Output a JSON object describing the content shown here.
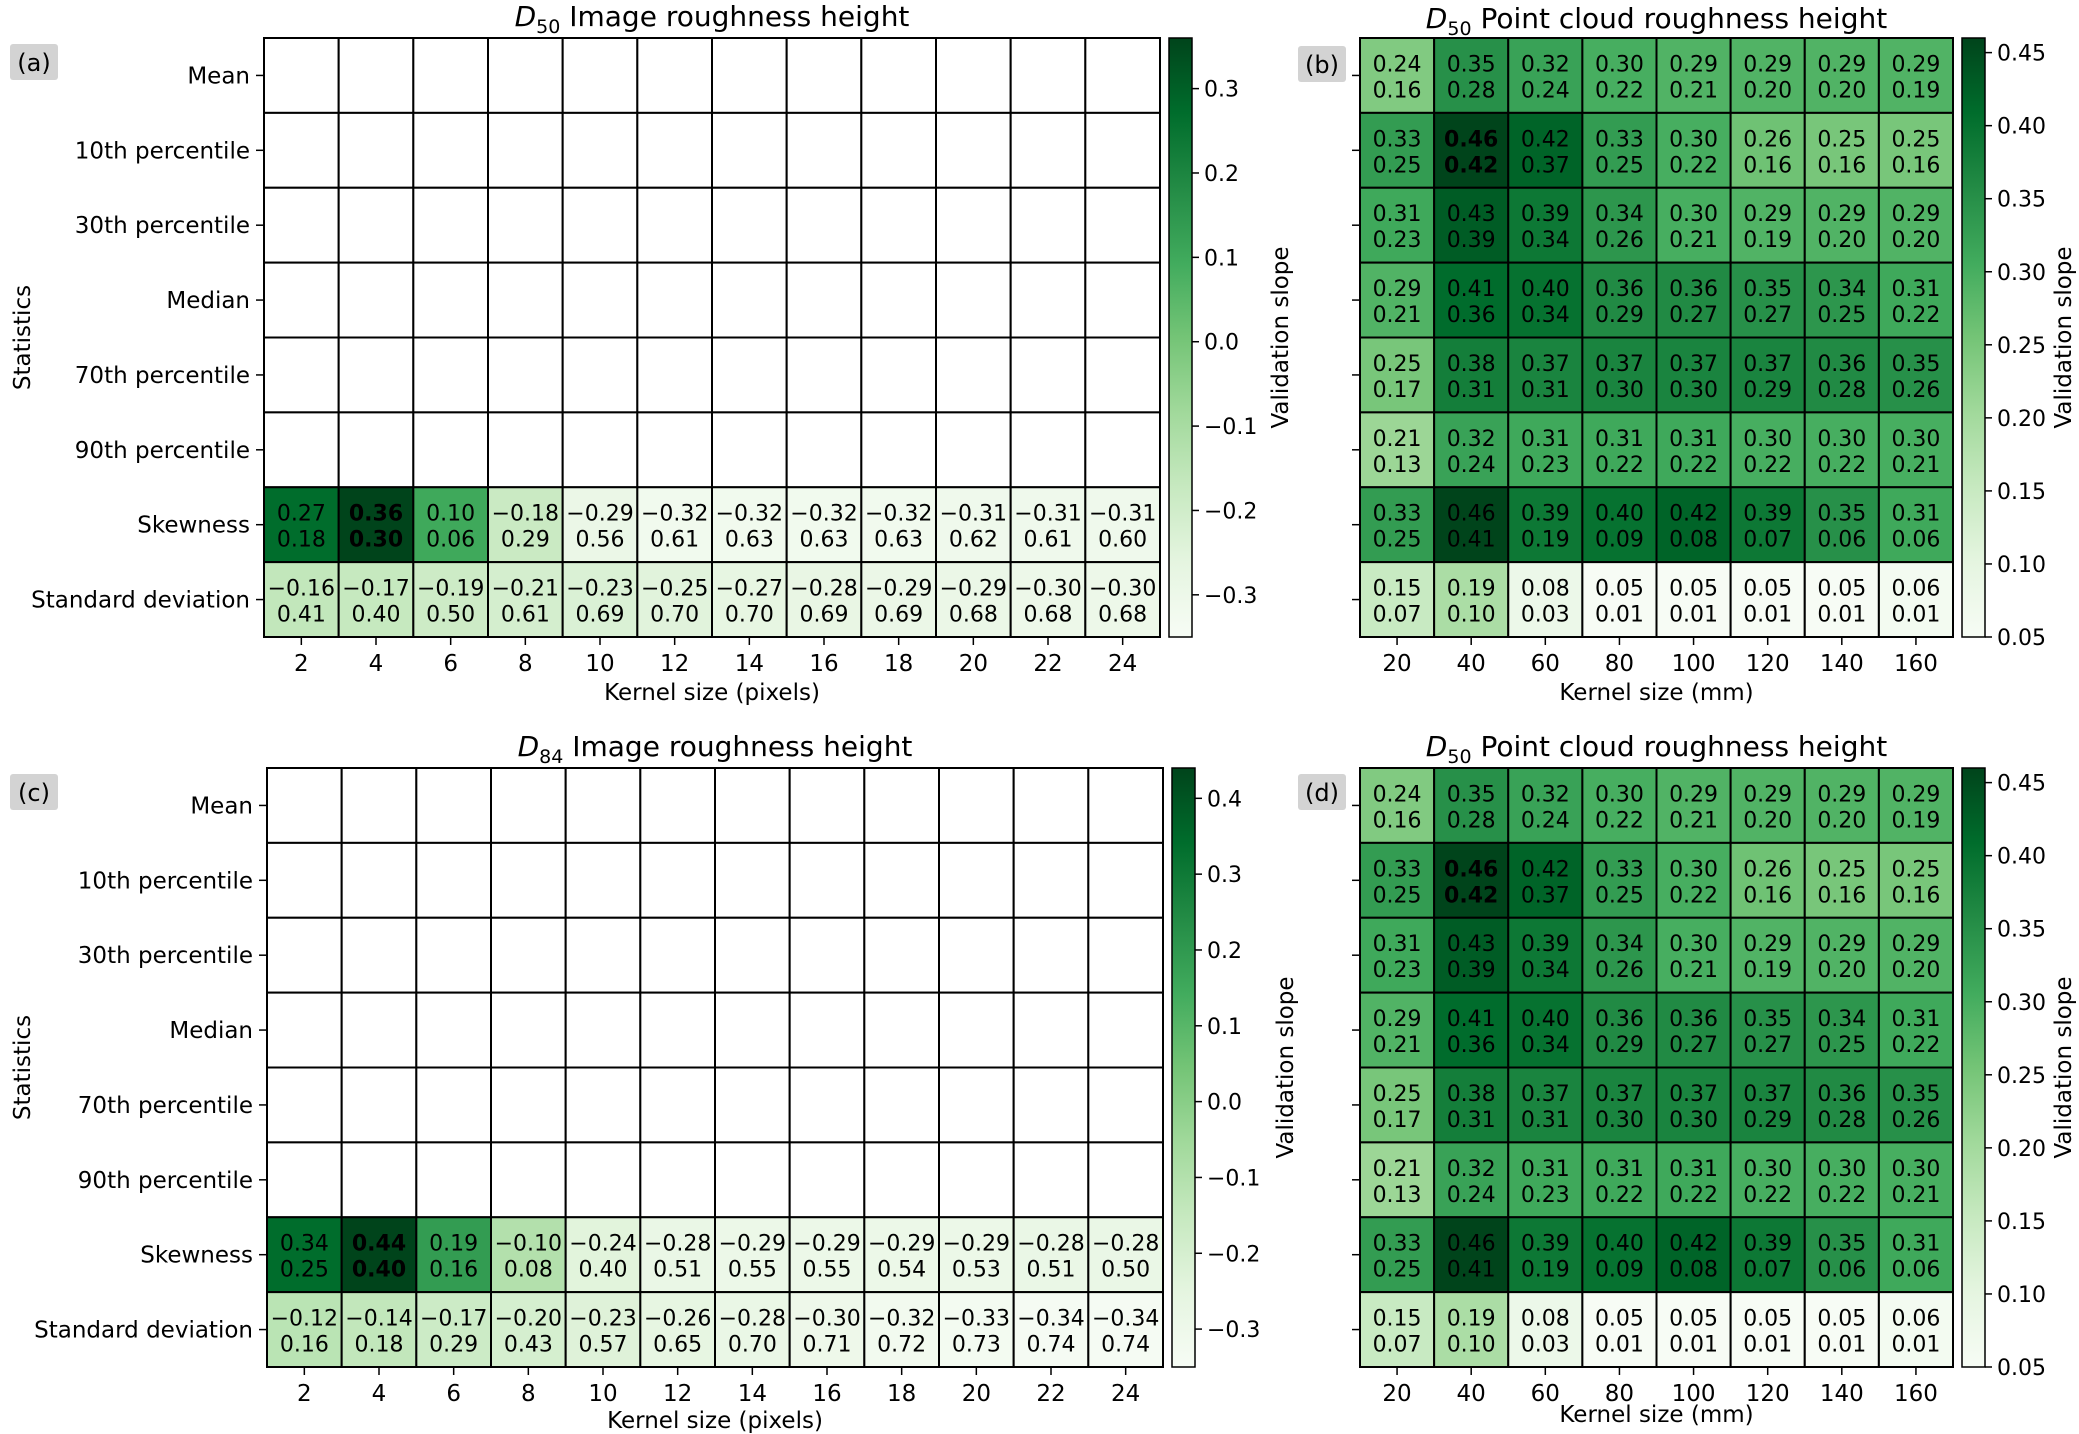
{
  "colormap": [
    "#f7fcf5",
    "#e5f5e0",
    "#c7e9c0",
    "#a1d99b",
    "#74c476",
    "#41ab5d",
    "#238b45",
    "#006d2c",
    "#00441b"
  ],
  "chart_data": [
    {
      "type": "heatmap",
      "panel_label": "(a)",
      "title_symbol": "D",
      "title_subscript": "50",
      "title": "Image roughness height",
      "xlabel": "Kernel size (pixels)",
      "ylabel": "Statistics",
      "colorbar_label": "Validation slope",
      "colorbar_range": [
        -0.35,
        0.36
      ],
      "colorbar_ticks": [
        "0.3",
        "0.2",
        "0.1",
        "0.0",
        "−0.1",
        "−0.2",
        "−0.3"
      ],
      "colorbar_tick_values": [
        0.3,
        0.2,
        0.1,
        0.0,
        -0.1,
        -0.2,
        -0.3
      ],
      "x_categories": [
        "2",
        "4",
        "6",
        "8",
        "10",
        "12",
        "14",
        "16",
        "18",
        "20",
        "22",
        "24"
      ],
      "y_categories": [
        "Mean",
        "10th percentile",
        "30th percentile",
        "Median",
        "70th percentile",
        "90th percentile",
        "Skewness",
        "Standard deviation"
      ],
      "slope": [
        [
          null,
          null,
          null,
          null,
          null,
          null,
          null,
          null,
          null,
          null,
          null,
          null
        ],
        [
          null,
          null,
          null,
          null,
          null,
          null,
          null,
          null,
          null,
          null,
          null,
          null
        ],
        [
          null,
          null,
          null,
          null,
          null,
          null,
          null,
          null,
          null,
          null,
          null,
          null
        ],
        [
          null,
          null,
          null,
          null,
          null,
          null,
          null,
          null,
          null,
          null,
          null,
          null
        ],
        [
          null,
          null,
          null,
          null,
          null,
          null,
          null,
          null,
          null,
          null,
          null,
          null
        ],
        [
          null,
          null,
          null,
          null,
          null,
          null,
          null,
          null,
          null,
          null,
          null,
          null
        ],
        [
          "0.27",
          "0.36",
          "0.10",
          "-0.18",
          "-0.29",
          "-0.32",
          "-0.32",
          "-0.32",
          "-0.32",
          "-0.31",
          "-0.31",
          "-0.31"
        ],
        [
          "-0.16",
          "-0.17",
          "-0.19",
          "-0.21",
          "-0.23",
          "-0.25",
          "-0.27",
          "-0.28",
          "-0.29",
          "-0.29",
          "-0.30",
          "-0.30"
        ]
      ],
      "second_value": [
        [
          null,
          null,
          null,
          null,
          null,
          null,
          null,
          null,
          null,
          null,
          null,
          null
        ],
        [
          null,
          null,
          null,
          null,
          null,
          null,
          null,
          null,
          null,
          null,
          null,
          null
        ],
        [
          null,
          null,
          null,
          null,
          null,
          null,
          null,
          null,
          null,
          null,
          null,
          null
        ],
        [
          null,
          null,
          null,
          null,
          null,
          null,
          null,
          null,
          null,
          null,
          null,
          null
        ],
        [
          null,
          null,
          null,
          null,
          null,
          null,
          null,
          null,
          null,
          null,
          null,
          null
        ],
        [
          null,
          null,
          null,
          null,
          null,
          null,
          null,
          null,
          null,
          null,
          null,
          null
        ],
        [
          "0.18",
          "0.30",
          "0.06",
          "0.29",
          "0.56",
          "0.61",
          "0.63",
          "0.63",
          "0.63",
          "0.62",
          "0.61",
          "0.60"
        ],
        [
          "0.41",
          "0.40",
          "0.50",
          "0.61",
          "0.69",
          "0.70",
          "0.70",
          "0.69",
          "0.69",
          "0.68",
          "0.68",
          "0.68"
        ]
      ],
      "bold_cells": [
        [
          6,
          1
        ]
      ]
    },
    {
      "type": "heatmap",
      "panel_label": "(b)",
      "title_symbol": "D",
      "title_subscript": "50",
      "title": "Point cloud roughness height",
      "xlabel": "Kernel size (mm)",
      "ylabel": "",
      "colorbar_label": "Validation slope",
      "colorbar_range": [
        0.05,
        0.46
      ],
      "colorbar_ticks": [
        "0.45",
        "0.40",
        "0.35",
        "0.30",
        "0.25",
        "0.20",
        "0.15",
        "0.10",
        "0.05"
      ],
      "colorbar_tick_values": [
        0.45,
        0.4,
        0.35,
        0.3,
        0.25,
        0.2,
        0.15,
        0.1,
        0.05
      ],
      "x_categories": [
        "20",
        "40",
        "60",
        "80",
        "100",
        "120",
        "140",
        "160"
      ],
      "y_categories": [
        "Mean",
        "10th percentile",
        "30th percentile",
        "Median",
        "70th percentile",
        "90th percentile",
        "Skewness",
        "Standard deviation"
      ],
      "slope": [
        [
          "0.24",
          "0.35",
          "0.32",
          "0.30",
          "0.29",
          "0.29",
          "0.29",
          "0.29"
        ],
        [
          "0.33",
          "0.46",
          "0.42",
          "0.33",
          "0.30",
          "0.26",
          "0.25",
          "0.25"
        ],
        [
          "0.31",
          "0.43",
          "0.39",
          "0.34",
          "0.30",
          "0.29",
          "0.29",
          "0.29"
        ],
        [
          "0.29",
          "0.41",
          "0.40",
          "0.36",
          "0.36",
          "0.35",
          "0.34",
          "0.31"
        ],
        [
          "0.25",
          "0.38",
          "0.37",
          "0.37",
          "0.37",
          "0.37",
          "0.36",
          "0.35"
        ],
        [
          "0.21",
          "0.32",
          "0.31",
          "0.31",
          "0.31",
          "0.30",
          "0.30",
          "0.30"
        ],
        [
          "0.33",
          "0.46",
          "0.39",
          "0.40",
          "0.42",
          "0.39",
          "0.35",
          "0.31"
        ],
        [
          "0.15",
          "0.19",
          "0.08",
          "0.05",
          "0.05",
          "0.05",
          "0.05",
          "0.06"
        ]
      ],
      "second_value": [
        [
          "0.16",
          "0.28",
          "0.24",
          "0.22",
          "0.21",
          "0.20",
          "0.20",
          "0.19"
        ],
        [
          "0.25",
          "0.42",
          "0.37",
          "0.25",
          "0.22",
          "0.16",
          "0.16",
          "0.16"
        ],
        [
          "0.23",
          "0.39",
          "0.34",
          "0.26",
          "0.21",
          "0.19",
          "0.20",
          "0.20"
        ],
        [
          "0.21",
          "0.36",
          "0.34",
          "0.29",
          "0.27",
          "0.27",
          "0.25",
          "0.22"
        ],
        [
          "0.17",
          "0.31",
          "0.31",
          "0.30",
          "0.30",
          "0.29",
          "0.28",
          "0.26"
        ],
        [
          "0.13",
          "0.24",
          "0.23",
          "0.22",
          "0.22",
          "0.22",
          "0.22",
          "0.21"
        ],
        [
          "0.25",
          "0.41",
          "0.19",
          "0.09",
          "0.08",
          "0.07",
          "0.06",
          "0.06"
        ],
        [
          "0.07",
          "0.10",
          "0.03",
          "0.01",
          "0.01",
          "0.01",
          "0.01",
          "0.01"
        ]
      ],
      "bold_cells": [
        [
          1,
          1
        ]
      ]
    },
    {
      "type": "heatmap",
      "panel_label": "(c)",
      "title_symbol": "D",
      "title_subscript": "84",
      "title": "Image roughness height",
      "xlabel": "Kernel size (pixels)",
      "ylabel": "Statistics",
      "colorbar_label": "Validation slope",
      "colorbar_range": [
        -0.35,
        0.44
      ],
      "colorbar_ticks": [
        "0.4",
        "0.3",
        "0.2",
        "0.1",
        "0.0",
        "−0.1",
        "−0.2",
        "−0.3"
      ],
      "colorbar_tick_values": [
        0.4,
        0.3,
        0.2,
        0.1,
        0.0,
        -0.1,
        -0.2,
        -0.3
      ],
      "x_categories": [
        "2",
        "4",
        "6",
        "8",
        "10",
        "12",
        "14",
        "16",
        "18",
        "20",
        "22",
        "24"
      ],
      "y_categories": [
        "Mean",
        "10th percentile",
        "30th percentile",
        "Median",
        "70th percentile",
        "90th percentile",
        "Skewness",
        "Standard deviation"
      ],
      "slope": [
        [
          null,
          null,
          null,
          null,
          null,
          null,
          null,
          null,
          null,
          null,
          null,
          null
        ],
        [
          null,
          null,
          null,
          null,
          null,
          null,
          null,
          null,
          null,
          null,
          null,
          null
        ],
        [
          null,
          null,
          null,
          null,
          null,
          null,
          null,
          null,
          null,
          null,
          null,
          null
        ],
        [
          null,
          null,
          null,
          null,
          null,
          null,
          null,
          null,
          null,
          null,
          null,
          null
        ],
        [
          null,
          null,
          null,
          null,
          null,
          null,
          null,
          null,
          null,
          null,
          null,
          null
        ],
        [
          null,
          null,
          null,
          null,
          null,
          null,
          null,
          null,
          null,
          null,
          null,
          null
        ],
        [
          "0.34",
          "0.44",
          "0.19",
          "-0.10",
          "-0.24",
          "-0.28",
          "-0.29",
          "-0.29",
          "-0.29",
          "-0.29",
          "-0.28",
          "-0.28"
        ],
        [
          "-0.12",
          "-0.14",
          "-0.17",
          "-0.20",
          "-0.23",
          "-0.26",
          "-0.28",
          "-0.30",
          "-0.32",
          "-0.33",
          "-0.34",
          "-0.34"
        ]
      ],
      "second_value": [
        [
          null,
          null,
          null,
          null,
          null,
          null,
          null,
          null,
          null,
          null,
          null,
          null
        ],
        [
          null,
          null,
          null,
          null,
          null,
          null,
          null,
          null,
          null,
          null,
          null,
          null
        ],
        [
          null,
          null,
          null,
          null,
          null,
          null,
          null,
          null,
          null,
          null,
          null,
          null
        ],
        [
          null,
          null,
          null,
          null,
          null,
          null,
          null,
          null,
          null,
          null,
          null,
          null
        ],
        [
          null,
          null,
          null,
          null,
          null,
          null,
          null,
          null,
          null,
          null,
          null,
          null
        ],
        [
          null,
          null,
          null,
          null,
          null,
          null,
          null,
          null,
          null,
          null,
          null,
          null
        ],
        [
          "0.25",
          "0.40",
          "0.16",
          "0.08",
          "0.40",
          "0.51",
          "0.55",
          "0.55",
          "0.54",
          "0.53",
          "0.51",
          "0.50"
        ],
        [
          "0.16",
          "0.18",
          "0.29",
          "0.43",
          "0.57",
          "0.65",
          "0.70",
          "0.71",
          "0.72",
          "0.73",
          "0.74",
          "0.74"
        ]
      ],
      "bold_cells": [
        [
          6,
          1
        ]
      ]
    },
    {
      "type": "heatmap",
      "panel_label": "(d)",
      "title_symbol": "D",
      "title_subscript": "50",
      "title": "Point cloud roughness height",
      "xlabel": "Kernel size (mm)",
      "ylabel": "",
      "colorbar_label": "Validation slope",
      "colorbar_range": [
        0.05,
        0.46
      ],
      "colorbar_ticks": [
        "0.45",
        "0.40",
        "0.35",
        "0.30",
        "0.25",
        "0.20",
        "0.15",
        "0.10",
        "0.05"
      ],
      "colorbar_tick_values": [
        0.45,
        0.4,
        0.35,
        0.3,
        0.25,
        0.2,
        0.15,
        0.1,
        0.05
      ],
      "x_categories": [
        "20",
        "40",
        "60",
        "80",
        "100",
        "120",
        "140",
        "160"
      ],
      "y_categories": [
        "Mean",
        "10th percentile",
        "30th percentile",
        "Median",
        "70th percentile",
        "90th percentile",
        "Skewness",
        "Standard deviation"
      ],
      "slope": [
        [
          "0.24",
          "0.35",
          "0.32",
          "0.30",
          "0.29",
          "0.29",
          "0.29",
          "0.29"
        ],
        [
          "0.33",
          "0.46",
          "0.42",
          "0.33",
          "0.30",
          "0.26",
          "0.25",
          "0.25"
        ],
        [
          "0.31",
          "0.43",
          "0.39",
          "0.34",
          "0.30",
          "0.29",
          "0.29",
          "0.29"
        ],
        [
          "0.29",
          "0.41",
          "0.40",
          "0.36",
          "0.36",
          "0.35",
          "0.34",
          "0.31"
        ],
        [
          "0.25",
          "0.38",
          "0.37",
          "0.37",
          "0.37",
          "0.37",
          "0.36",
          "0.35"
        ],
        [
          "0.21",
          "0.32",
          "0.31",
          "0.31",
          "0.31",
          "0.30",
          "0.30",
          "0.30"
        ],
        [
          "0.33",
          "0.46",
          "0.39",
          "0.40",
          "0.42",
          "0.39",
          "0.35",
          "0.31"
        ],
        [
          "0.15",
          "0.19",
          "0.08",
          "0.05",
          "0.05",
          "0.05",
          "0.05",
          "0.06"
        ]
      ],
      "second_value": [
        [
          "0.16",
          "0.28",
          "0.24",
          "0.22",
          "0.21",
          "0.20",
          "0.20",
          "0.19"
        ],
        [
          "0.25",
          "0.42",
          "0.37",
          "0.25",
          "0.22",
          "0.16",
          "0.16",
          "0.16"
        ],
        [
          "0.23",
          "0.39",
          "0.34",
          "0.26",
          "0.21",
          "0.19",
          "0.20",
          "0.20"
        ],
        [
          "0.21",
          "0.36",
          "0.34",
          "0.29",
          "0.27",
          "0.27",
          "0.25",
          "0.22"
        ],
        [
          "0.17",
          "0.31",
          "0.31",
          "0.30",
          "0.30",
          "0.29",
          "0.28",
          "0.26"
        ],
        [
          "0.13",
          "0.24",
          "0.23",
          "0.22",
          "0.22",
          "0.22",
          "0.22",
          "0.21"
        ],
        [
          "0.25",
          "0.41",
          "0.19",
          "0.09",
          "0.08",
          "0.07",
          "0.06",
          "0.06"
        ],
        [
          "0.07",
          "0.10",
          "0.03",
          "0.01",
          "0.01",
          "0.01",
          "0.01",
          "0.01"
        ]
      ],
      "bold_cells": [
        [
          1,
          1
        ]
      ]
    }
  ]
}
